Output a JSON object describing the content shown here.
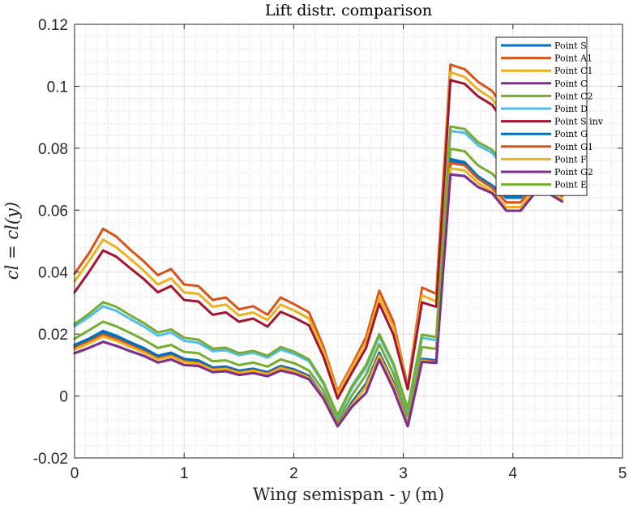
{
  "chart_data": {
    "type": "line",
    "title": "Lift distr. comparison",
    "xlabel_text": "Wing semispan - ",
    "xlabel_var": "y",
    "xlabel_unit": "(m)",
    "ylabel": "cl = cl(y)",
    "xlim": [
      0,
      5
    ],
    "ylim": [
      -0.02,
      0.12
    ],
    "x_ticks": [
      0,
      1,
      2,
      3,
      4,
      5
    ],
    "y_ticks": [
      -0.02,
      0,
      0.02,
      0.04,
      0.06,
      0.08,
      0.1,
      0.12
    ],
    "x_tick_labels": [
      "0",
      "1",
      "2",
      "3",
      "4",
      "5"
    ],
    "y_tick_labels": [
      "-0.02",
      "0",
      "0.02",
      "0.04",
      "0.06",
      "0.08",
      "0.1",
      "0.12"
    ],
    "grid": "major and minor (dotted)",
    "legend_position": "top-right",
    "x": [
      0,
      0.13,
      0.26,
      0.38,
      0.5,
      0.63,
      0.76,
      0.88,
      1.0,
      1.13,
      1.26,
      1.38,
      1.5,
      1.63,
      1.76,
      1.88,
      2.01,
      2.14,
      2.27,
      2.4,
      2.53,
      2.66,
      2.78,
      2.91,
      3.04,
      3.17,
      3.3,
      3.43,
      3.56,
      3.68,
      3.81,
      3.94,
      4.07,
      4.2,
      4.32,
      4.45
    ],
    "series": [
      {
        "name": "Point S",
        "color": "#0072BD",
        "values": [
          0.0165,
          0.0185,
          0.021,
          0.0195,
          0.0175,
          0.0155,
          0.013,
          0.014,
          0.012,
          0.0115,
          0.0092,
          0.0095,
          0.0082,
          0.0088,
          0.0077,
          0.0097,
          0.0085,
          0.0065,
          -0.0001,
          -0.0095,
          -0.002,
          0.004,
          0.014,
          0.0045,
          -0.009,
          0.012,
          0.0115,
          0.076,
          0.075,
          0.0705,
          0.0675,
          0.064,
          0.064,
          0.0685,
          0.068,
          0.065
        ]
      },
      {
        "name": "Point A1",
        "color": "#D95319",
        "values": [
          0.0395,
          0.046,
          0.054,
          0.0515,
          0.0475,
          0.0435,
          0.039,
          0.041,
          0.036,
          0.0355,
          0.031,
          0.0318,
          0.028,
          0.029,
          0.0262,
          0.0318,
          0.0295,
          0.027,
          0.016,
          0.0015,
          0.01,
          0.019,
          0.034,
          0.024,
          0.003,
          0.035,
          0.033,
          0.107,
          0.1055,
          0.1015,
          0.0985,
          0.092,
          0.093,
          0.0955,
          0.094,
          0.09
        ]
      },
      {
        "name": "Point C1",
        "color": "#EDB120",
        "values": [
          0.037,
          0.0435,
          0.0505,
          0.048,
          0.0445,
          0.0405,
          0.036,
          0.038,
          0.0335,
          0.033,
          0.0288,
          0.0295,
          0.026,
          0.027,
          0.0245,
          0.0295,
          0.0275,
          0.025,
          0.0148,
          0.0008,
          0.0092,
          0.0175,
          0.0318,
          0.0222,
          0.0025,
          0.0325,
          0.0305,
          0.1045,
          0.103,
          0.099,
          0.096,
          0.0895,
          0.0905,
          0.093,
          0.0915,
          0.0875
        ]
      },
      {
        "name": "Point C",
        "color": "#7E2F8E",
        "values": [
          0.0138,
          0.0155,
          0.0175,
          0.0162,
          0.0146,
          0.013,
          0.0108,
          0.0118,
          0.01,
          0.0097,
          0.0077,
          0.008,
          0.0068,
          0.0074,
          0.0064,
          0.0082,
          0.0072,
          0.0054,
          -0.0008,
          -0.0098,
          -0.0035,
          0.001,
          0.0118,
          0.0022,
          -0.0098,
          0.011,
          0.0107,
          0.0715,
          0.071,
          0.0675,
          0.0655,
          0.0598,
          0.0598,
          0.0655,
          0.0655,
          0.0628
        ]
      },
      {
        "name": "Point C2",
        "color": "#77AC30",
        "values": [
          0.0185,
          0.0212,
          0.024,
          0.0225,
          0.0205,
          0.0182,
          0.0155,
          0.0165,
          0.0142,
          0.0138,
          0.0112,
          0.0115,
          0.01,
          0.0108,
          0.0095,
          0.0118,
          0.0105,
          0.0082,
          0.0018,
          -0.0082,
          0.0002,
          0.0068,
          0.0168,
          0.0072,
          -0.0065,
          0.0158,
          0.0152,
          0.0798,
          0.079,
          0.0745,
          0.0718,
          0.067,
          0.067,
          0.0715,
          0.071,
          0.0685
        ]
      },
      {
        "name": "Point D",
        "color": "#4DBEEE",
        "values": [
          0.0225,
          0.0255,
          0.029,
          0.0275,
          0.025,
          0.0225,
          0.0195,
          0.0205,
          0.0178,
          0.0172,
          0.0145,
          0.0148,
          0.0132,
          0.014,
          0.0124,
          0.015,
          0.0135,
          0.0112,
          0.004,
          -0.0068,
          0.0025,
          0.0092,
          0.0192,
          0.0098,
          -0.0045,
          0.0188,
          0.018,
          0.0855,
          0.085,
          0.081,
          0.0785,
          0.073,
          0.073,
          0.0775,
          0.0765,
          0.0735
        ]
      },
      {
        "name": "Point S inv",
        "color": "#A2142F",
        "values": [
          0.0335,
          0.04,
          0.047,
          0.045,
          0.0415,
          0.0378,
          0.0335,
          0.0355,
          0.031,
          0.0305,
          0.0262,
          0.027,
          0.024,
          0.025,
          0.0224,
          0.0272,
          0.0252,
          0.0228,
          0.0128,
          -0.0008,
          0.0075,
          0.0155,
          0.0298,
          0.0198,
          0.0022,
          0.0302,
          0.0288,
          0.102,
          0.1008,
          0.0968,
          0.094,
          0.0875,
          0.0885,
          0.091,
          0.0895,
          0.0855
        ]
      },
      {
        "name": "Point G",
        "color": "#0072BD",
        "values": [
          0.016,
          0.018,
          0.0205,
          0.019,
          0.017,
          0.015,
          0.0125,
          0.0135,
          0.0115,
          0.011,
          0.0088,
          0.0091,
          0.0078,
          0.0085,
          0.0074,
          0.0094,
          0.0082,
          0.0062,
          -0.0002,
          -0.0095,
          -0.0025,
          0.0035,
          0.0135,
          0.004,
          -0.0092,
          0.0118,
          0.0112,
          0.0765,
          0.0755,
          0.071,
          0.068,
          0.0645,
          0.0645,
          0.069,
          0.0685,
          0.0655
        ]
      },
      {
        "name": "Point G1",
        "color": "#D95319",
        "values": [
          0.0155,
          0.0175,
          0.0198,
          0.0184,
          0.0165,
          0.0145,
          0.0121,
          0.0131,
          0.0112,
          0.0107,
          0.0086,
          0.0089,
          0.0076,
          0.0083,
          0.0072,
          0.0092,
          0.008,
          0.006,
          -0.0003,
          -0.0095,
          -0.0028,
          0.0032,
          0.0132,
          0.0038,
          -0.0093,
          0.0116,
          0.011,
          0.0752,
          0.0745,
          0.0702,
          0.0672,
          0.0625,
          0.0625,
          0.068,
          0.0675,
          0.0645
        ]
      },
      {
        "name": "Point F",
        "color": "#EDB120",
        "values": [
          0.015,
          0.017,
          0.0192,
          0.0178,
          0.016,
          0.0141,
          0.0118,
          0.0128,
          0.0109,
          0.0104,
          0.0084,
          0.0087,
          0.0074,
          0.0081,
          0.007,
          0.009,
          0.0078,
          0.0058,
          -0.0004,
          -0.0096,
          -0.003,
          0.003,
          0.013,
          0.0035,
          -0.0094,
          0.0114,
          0.0108,
          0.0735,
          0.0728,
          0.0688,
          0.066,
          0.061,
          0.061,
          0.0668,
          0.0663,
          0.0635
        ]
      },
      {
        "name": "Point G2",
        "color": "#7E2F8E",
        "values": [
          0.0138,
          0.0155,
          0.0175,
          0.0162,
          0.0146,
          0.013,
          0.0108,
          0.0118,
          0.01,
          0.0097,
          0.0077,
          0.008,
          0.0068,
          0.0074,
          0.0064,
          0.0082,
          0.0072,
          0.0054,
          -0.0008,
          -0.0098,
          -0.0035,
          0.001,
          0.0118,
          0.0022,
          -0.0098,
          0.011,
          0.0107,
          0.0715,
          0.071,
          0.0675,
          0.0655,
          0.0598,
          0.0598,
          0.0655,
          0.0655,
          0.0628
        ]
      },
      {
        "name": "Point E",
        "color": "#77AC30",
        "values": [
          0.0232,
          0.0265,
          0.0303,
          0.0288,
          0.0262,
          0.0236,
          0.0205,
          0.0215,
          0.0188,
          0.0182,
          0.0153,
          0.0156,
          0.0138,
          0.0146,
          0.013,
          0.0158,
          0.0142,
          0.0118,
          0.0045,
          -0.0062,
          0.0032,
          0.01,
          0.02,
          0.0105,
          -0.004,
          0.0198,
          0.019,
          0.087,
          0.0862,
          0.082,
          0.0795,
          0.0742,
          0.0742,
          0.0785,
          0.0775,
          0.0745
        ]
      }
    ]
  }
}
